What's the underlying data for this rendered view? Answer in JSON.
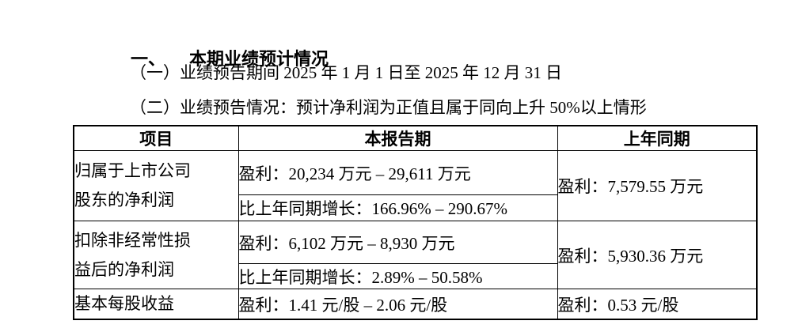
{
  "document": {
    "section": {
      "number": "一、",
      "title": "本期业绩预计情况"
    },
    "paragraphs": [
      "（一）业绩预告期间 2025 年 1 月 1 日至 2025 年 12 月 31 日",
      "（二）业绩预告情况：预计净利润为正值且属于同向上升 50%以上情形"
    ]
  },
  "table": {
    "headers": [
      "项目",
      "本报告期",
      "上年同期"
    ],
    "rows": [
      {
        "item": "归属于上市公司股东的净利润",
        "item_lines": [
          "归属于上市公司",
          "股东的净利润"
        ],
        "current_period_profit": "盈利：20,234 万元 – 29,611 万元",
        "current_period_growth": "比上年同期增长：166.96% – 290.67%",
        "prior_period": "盈利：7,579.55 万元"
      },
      {
        "item": "扣除非经常性损益后的净利润",
        "item_lines": [
          "扣除非经常性损",
          "益后的净利润"
        ],
        "current_period_profit": "盈利：6,102 万元 – 8,930 万元",
        "current_period_growth": "比上年同期增长：2.89% – 50.58%",
        "prior_period": "盈利：5,930.36 万元"
      },
      {
        "item": "基本每股收益",
        "item_lines": [
          "基本每股收益"
        ],
        "current_period_profit": "盈利：1.41 元/股 – 2.06 元/股",
        "prior_period": "盈利：0.53 元/股"
      }
    ]
  },
  "colors": {
    "text": "#000000",
    "border": "#000000",
    "background": "#ffffff"
  }
}
